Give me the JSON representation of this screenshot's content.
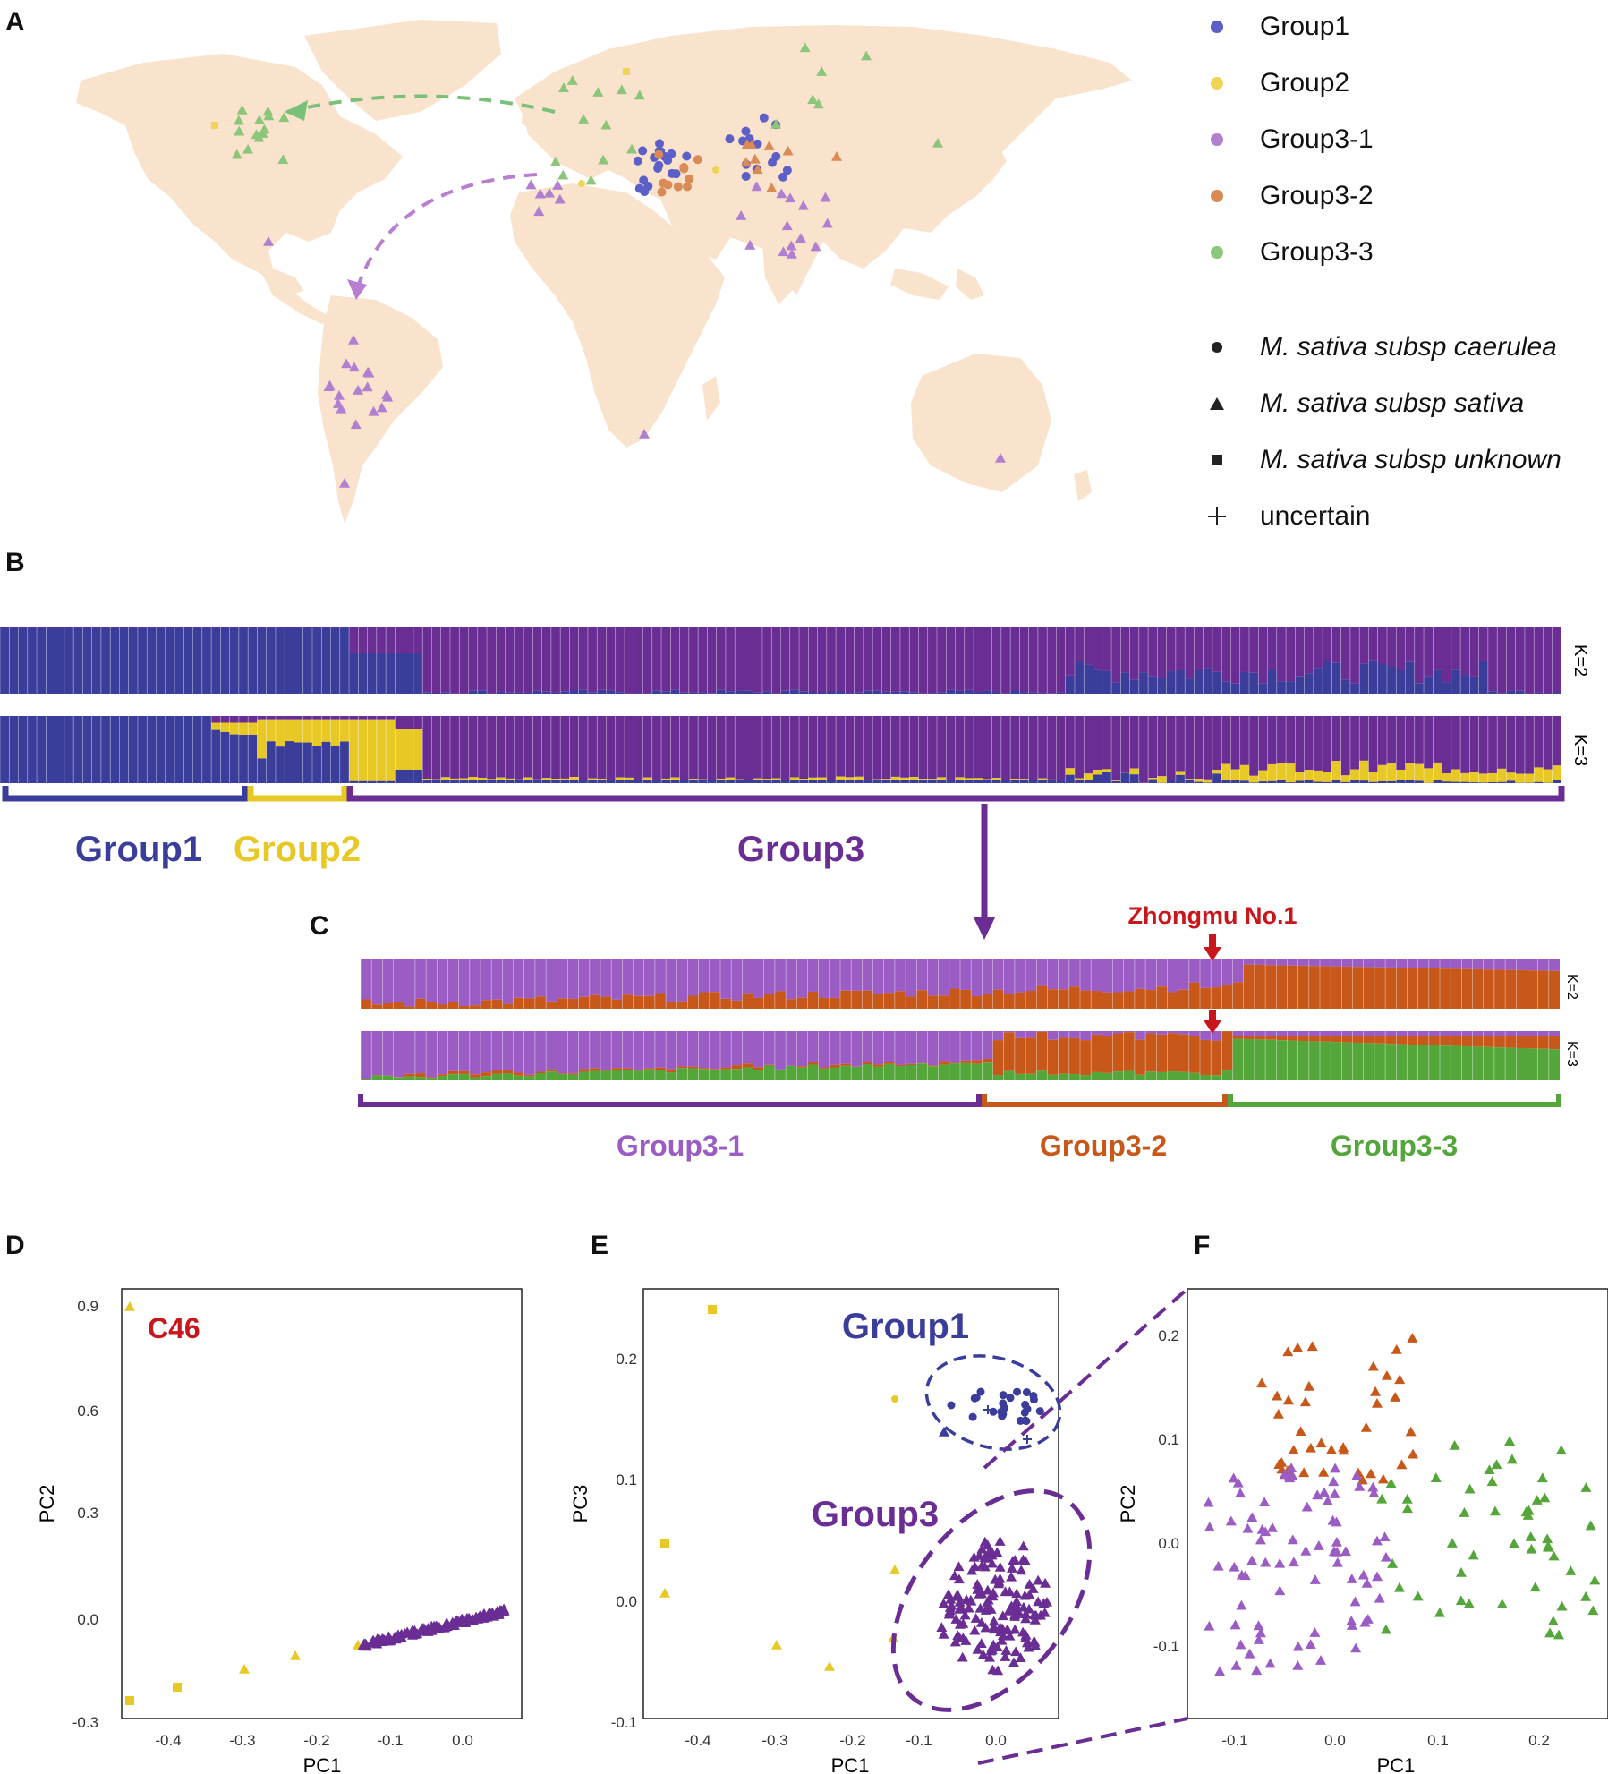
{
  "panels": {
    "a": "A",
    "b": "B",
    "c": "C",
    "d": "D",
    "e": "E",
    "f": "F"
  },
  "colors": {
    "group1": "#3a3d9a",
    "group2": "#e8c825",
    "group3": "#6a2d94",
    "group3_1": "#9b5cc4",
    "group3_2": "#c8571a",
    "group3_3": "#54a63a",
    "land": "#f9e3cc",
    "zhongmu": "#c8161d"
  },
  "legend": {
    "groups": [
      {
        "label": "Group1",
        "color": "#5b5fc7"
      },
      {
        "label": "Group2",
        "color": "#f0d455"
      },
      {
        "label": "Group3-1",
        "color": "#b07fd0"
      },
      {
        "label": "Group3-2",
        "color": "#d98a55"
      },
      {
        "label": "Group3-3",
        "color": "#8cc67a"
      }
    ],
    "shapes": [
      {
        "label": "M. sativa subsp caerulea",
        "icon": "circle-icon",
        "italic": true
      },
      {
        "label": "M. sativa subsp sativa",
        "icon": "triangle-icon",
        "italic": true
      },
      {
        "label": "M. sativa subsp unknown",
        "icon": "square-icon",
        "italic": true
      },
      {
        "label": "uncertain",
        "icon": "plus-icon",
        "italic": false
      }
    ]
  },
  "structure_b": {
    "k_labels": [
      "K=2",
      "K=3"
    ],
    "groups": [
      "Group1",
      "Group2",
      "Group3"
    ]
  },
  "structure_c": {
    "k_labels": [
      "K=2",
      "K=3"
    ],
    "groups": [
      "Group3-1",
      "Group3-2",
      "Group3-3"
    ],
    "annotation": "Zhongmu No.1"
  },
  "plot_d": {
    "annotation": "C46",
    "xlabel": "PC1",
    "ylabel": "PC2",
    "xticks": [
      "-0.4",
      "-0.3",
      "-0.2",
      "-0.1",
      "0.0"
    ],
    "yticks": [
      "0.9",
      "0.6",
      "0.3",
      "0.0",
      "-0.3"
    ]
  },
  "plot_e": {
    "labels": [
      "Group1",
      "Group3"
    ],
    "xlabel": "PC1",
    "ylabel": "PC3",
    "xticks": [
      "-0.4",
      "-0.3",
      "-0.2",
      "-0.1",
      "0.0"
    ],
    "yticks": [
      "0.2",
      "0.1",
      "0.0",
      "-0.1"
    ]
  },
  "plot_f": {
    "xlabel": "PC1",
    "ylabel": "PC2",
    "xticks": [
      "-0.1",
      "0.0",
      "0.1",
      "0.2"
    ],
    "yticks": [
      "0.2",
      "0.1",
      "0.0",
      "-0.1"
    ]
  }
}
